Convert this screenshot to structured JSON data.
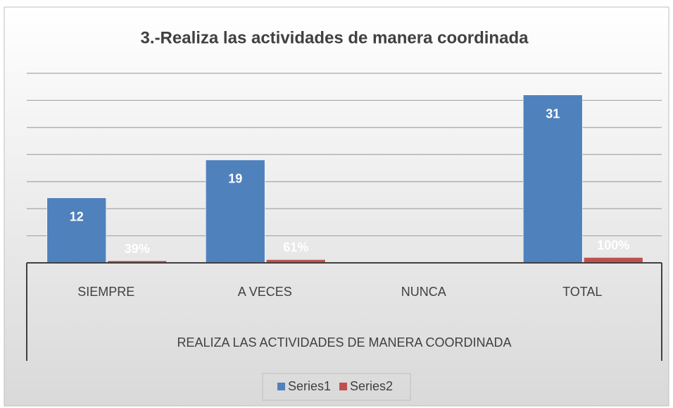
{
  "chart_data": {
    "type": "bar",
    "title": "3.-Realiza las actividades de manera coordinada",
    "categories": [
      "SIEMPRE",
      "A VECES",
      "NUNCA",
      "TOTAL"
    ],
    "group_label": "REALIZA LAS ACTIVIDADES DE MANERA COORDINADA",
    "series": [
      {
        "name": "Series1",
        "color": "#4f81bd",
        "values": [
          12,
          19,
          null,
          31
        ],
        "value_labels": [
          "12",
          "19",
          null,
          "31"
        ]
      },
      {
        "name": "Series2",
        "color": "#c0504d",
        "values": [
          0.39,
          0.61,
          null,
          1
        ],
        "value_labels": [
          "39%",
          "61%",
          null,
          "100%"
        ]
      }
    ],
    "ylim": [
      0,
      35
    ],
    "yticks": [
      0,
      5,
      10,
      15,
      20,
      25,
      30,
      35
    ],
    "grid": true,
    "legend": "bottom"
  }
}
